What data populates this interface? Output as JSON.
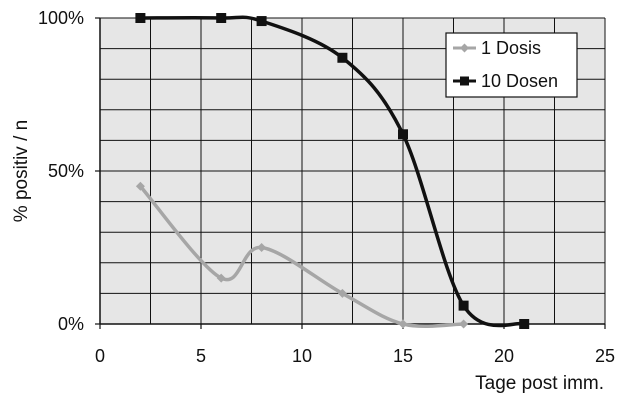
{
  "chart_data": {
    "type": "line",
    "title": "",
    "xlabel": "Tage post imm.",
    "ylabel": "% positiv / n",
    "xlim": [
      0,
      25
    ],
    "ylim": [
      0,
      100
    ],
    "x_ticks": [
      0,
      5,
      10,
      15,
      20,
      25
    ],
    "x_tick_labels": [
      "0",
      "5",
      "10",
      "15",
      "20",
      "25"
    ],
    "y_ticks": [
      0,
      50,
      100
    ],
    "y_tick_labels": [
      "0%",
      "50%",
      "100%"
    ],
    "grid": true,
    "legend_position": "top-right",
    "series": [
      {
        "name": "1 Dosis",
        "color": "#a6a6a6",
        "marker": "diamond",
        "x": [
          2,
          6,
          8,
          12,
          15,
          18
        ],
        "y": [
          45,
          15,
          25,
          10,
          0,
          0
        ]
      },
      {
        "name": "10 Dosen",
        "color": "#111111",
        "marker": "square",
        "x": [
          2,
          6,
          8,
          12,
          15,
          18,
          21
        ],
        "y": [
          100,
          100,
          99,
          87,
          62,
          6,
          0
        ]
      }
    ]
  }
}
